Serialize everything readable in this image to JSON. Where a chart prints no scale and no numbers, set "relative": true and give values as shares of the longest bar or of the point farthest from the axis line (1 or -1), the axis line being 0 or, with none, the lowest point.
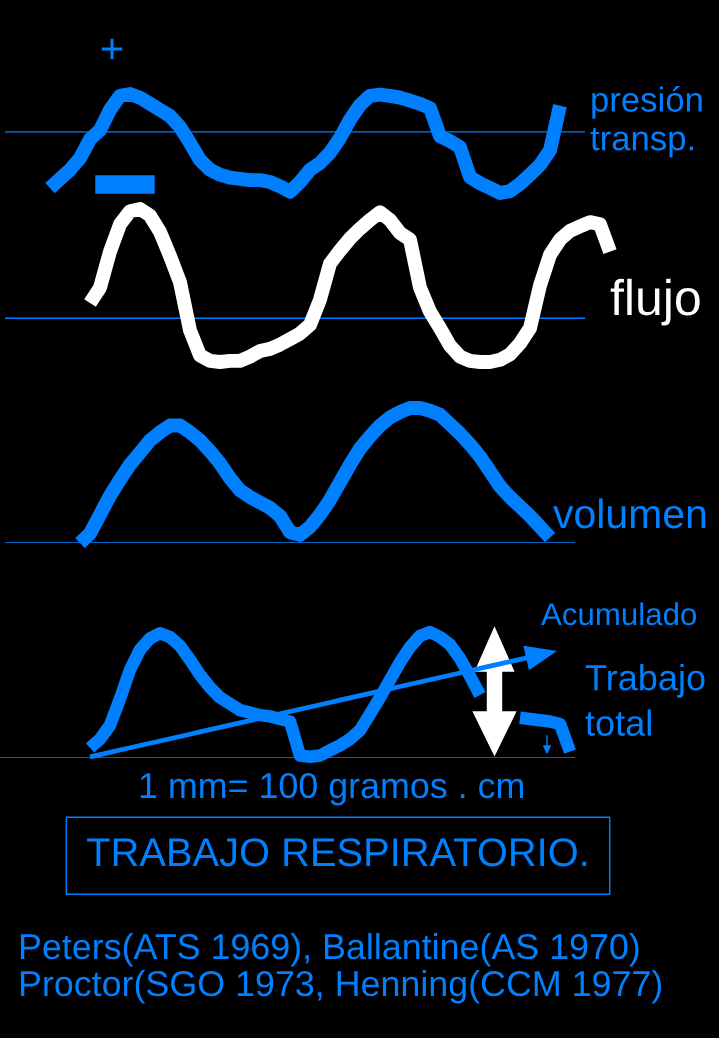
{
  "chart_data": [
    {
      "type": "line",
      "relative": true,
      "categories": [
        null,
        null,
        null,
        null,
        null,
        null,
        null,
        null,
        null,
        null,
        null,
        null,
        null,
        null,
        null,
        null,
        null,
        null,
        null,
        null,
        null,
        null,
        null,
        null,
        null,
        null,
        null,
        null,
        null,
        null,
        null,
        null,
        null,
        null,
        null,
        null,
        null,
        null,
        null,
        null,
        null,
        null,
        null,
        null,
        null,
        null,
        null,
        null,
        null,
        null,
        null,
        null,
        null,
        null,
        null,
        null,
        null
      ],
      "series": [
        {
          "name": "presión\ntransp.",
          "color": "#0080ff",
          "values": [
            -0.92,
            -0.77,
            -0.62,
            -0.43,
            -0.12,
            0.03,
            0.36,
            0.59,
            0.62,
            0.56,
            0.46,
            0.36,
            0.26,
            0.08,
            -0.18,
            -0.46,
            -0.62,
            -0.7,
            -0.75,
            -0.77,
            -0.79,
            -0.79,
            -0.82,
            -0.89,
            -0.98,
            -0.82,
            -0.62,
            -0.51,
            -0.34,
            -0.1,
            0.2,
            0.44,
            0.59,
            0.61,
            0.59,
            0.56,
            0.51,
            0.46,
            0.39,
            -0.07,
            -0.15,
            -0.25,
            -0.74,
            -0.84,
            -0.92,
            -1,
            -0.97,
            -0.85,
            -0.7,
            -0.54,
            -0.3,
            0.43,
            null,
            null,
            null,
            null,
            null
          ]
        }
      ],
      "ref_lines": [
        {
          "axis": "y",
          "value": 0,
          "color": "#0080ff"
        }
      ],
      "annotations": [
        "+"
      ]
    },
    {
      "type": "line",
      "relative": true,
      "categories": [
        null,
        null,
        null,
        null,
        null,
        null,
        null,
        null,
        null,
        null,
        null,
        null,
        null,
        null,
        null,
        null,
        null,
        null,
        null,
        null,
        null,
        null,
        null,
        null,
        null,
        null,
        null,
        null,
        null,
        null,
        null,
        null,
        null,
        null,
        null,
        null,
        null,
        null,
        null,
        null,
        null,
        null,
        null,
        null,
        null,
        null,
        null,
        null,
        null,
        null,
        null,
        null,
        null,
        null,
        null,
        null,
        null
      ],
      "series": [
        {
          "name": "flujo",
          "color": "#ffffff",
          "values": [
            null,
            null,
            null,
            null,
            0.14,
            0.28,
            0.61,
            0.86,
            0.98,
            1,
            0.94,
            0.79,
            0.57,
            0.33,
            -0.11,
            -0.34,
            -0.39,
            -0.4,
            -0.39,
            -0.39,
            -0.35,
            -0.3,
            -0.28,
            -0.24,
            -0.19,
            -0.14,
            -0.06,
            0.17,
            0.5,
            0.62,
            0.73,
            0.82,
            0.9,
            0.97,
            0.9,
            0.78,
            0.72,
            0.28,
            0.06,
            -0.09,
            -0.25,
            -0.35,
            -0.39,
            -0.4,
            -0.4,
            -0.38,
            -0.33,
            -0.23,
            -0.09,
            0.3,
            0.58,
            0.72,
            0.8,
            0.84,
            0.88,
            0.86,
            0.61
          ]
        }
      ],
      "ref_lines": [
        {
          "axis": "y",
          "value": 0,
          "color": "#0080ff"
        }
      ]
    },
    {
      "type": "line",
      "relative": true,
      "categories": [
        null,
        null,
        null,
        null,
        null,
        null,
        null,
        null,
        null,
        null,
        null,
        null,
        null,
        null,
        null,
        null,
        null,
        null,
        null,
        null,
        null,
        null,
        null,
        null,
        null,
        null,
        null,
        null,
        null,
        null,
        null,
        null,
        null,
        null,
        null,
        null,
        null,
        null,
        null,
        null,
        null,
        null,
        null,
        null,
        null,
        null,
        null,
        null,
        null,
        null,
        null,
        null,
        null,
        null,
        null,
        null,
        null
      ],
      "series": [
        {
          "name": "volumen",
          "color": "#0080ff",
          "values": [
            null,
            null,
            null,
            0,
            0.07,
            0.21,
            0.35,
            0.47,
            0.58,
            0.67,
            0.76,
            0.82,
            0.87,
            0.87,
            0.82,
            0.76,
            0.68,
            0.59,
            0.48,
            0.39,
            0.34,
            0.3,
            0.26,
            0.2,
            0.08,
            0.06,
            0.12,
            0.21,
            0.32,
            0.45,
            0.58,
            0.7,
            0.79,
            0.87,
            0.93,
            0.97,
            1,
            1,
            0.98,
            0.95,
            0.88,
            0.81,
            0.73,
            0.64,
            0.53,
            0.42,
            0.34,
            0.27,
            0.2,
            0.12,
            0.04,
            null,
            null,
            null,
            null,
            null,
            null
          ]
        }
      ],
      "ref_lines": [
        {
          "axis": "y",
          "value": 0,
          "color": "#0080ff"
        }
      ]
    },
    {
      "type": "line",
      "relative": true,
      "categories": [
        null,
        null,
        null,
        null,
        null,
        null,
        null,
        null,
        null,
        null,
        null,
        null,
        null,
        null,
        null,
        null,
        null,
        null,
        null,
        null,
        null,
        null,
        null,
        null,
        null,
        null,
        null,
        null,
        null,
        null,
        null,
        null,
        null,
        null,
        null,
        null,
        null,
        null,
        null,
        null,
        null,
        null,
        null,
        null,
        null,
        null,
        null,
        null,
        null,
        null,
        null,
        null,
        null,
        null,
        null,
        null,
        null
      ],
      "series": [
        {
          "color": "#0080ff",
          "values": [
            null,
            null,
            null,
            null,
            0.08,
            0.15,
            0.26,
            0.47,
            0.7,
            0.86,
            0.95,
            0.99,
            0.96,
            0.89,
            0.78,
            0.66,
            0.56,
            0.48,
            0.43,
            0.38,
            0.36,
            0.34,
            0.33,
            0.31,
            0.29,
            0.02,
            0.01,
            0.02,
            0.06,
            0.1,
            0.15,
            0.22,
            0.35,
            0.48,
            0.62,
            0.76,
            0.88,
            0.97,
            1,
            0.96,
            0.9,
            0.79,
            0.65,
            0.5,
            null,
            null,
            null,
            0.32,
            0.31,
            0.3,
            0.29,
            0.27,
            0.05,
            null,
            null,
            null,
            null
          ]
        },
        {
          "name": "Acumulado",
          "color": "#0080ff",
          "values": [
            null,
            null,
            null,
            null,
            0.009,
            0.027,
            0.045,
            0.063,
            0.081,
            0.099,
            0.117,
            0.135,
            0.153,
            0.171,
            0.189,
            0.207,
            0.225,
            0.243,
            0.261,
            0.279,
            0.297,
            0.315,
            0.333,
            0.351,
            0.369,
            0.387,
            0.405,
            0.423,
            0.441,
            0.459,
            0.477,
            0.495,
            0.513,
            0.531,
            0.549,
            0.567,
            0.585,
            0.603,
            0.621,
            0.639,
            0.657,
            0.675,
            0.693,
            0.711,
            0.729,
            0.747,
            0.765,
            0.783,
            0.801,
            null,
            null,
            null,
            null,
            null,
            null,
            null,
            null
          ]
        }
      ],
      "ref_lines": [
        {
          "axis": "y",
          "value": 0,
          "color": "#1a7ae8"
        }
      ],
      "annotations": [
        "Trabajo\ntotal",
        "1 mm= 100 gramos . cm"
      ]
    },
    {
      "type": "other",
      "title": "TRABAJO RESPIRATORIO.",
      "annotations": [
        "Peters(ATS 1969), Ballantine(AS 1970)",
        "Proctor(SGO 1973, Henning(CCM 1977)"
      ]
    }
  ]
}
